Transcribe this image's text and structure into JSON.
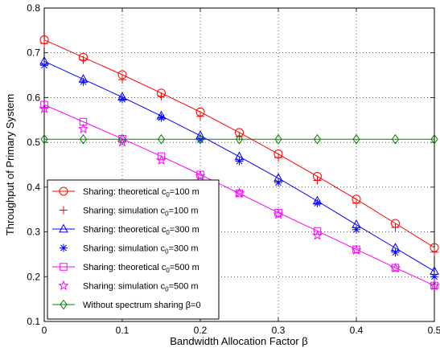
{
  "chart_data": {
    "type": "line",
    "xlabel": "Bandwidth Allocation Factor β",
    "ylabel": "Throughput of Primary System",
    "xlim": [
      0,
      0.5
    ],
    "ylim": [
      0.1,
      0.8
    ],
    "grid": true,
    "legend_position": "bottom-left",
    "x_ticks": [
      "0",
      "0.1",
      "0.2",
      "0.3",
      "0.4",
      "0.5"
    ],
    "y_ticks": [
      "0.1",
      "0.2",
      "0.3",
      "0.4",
      "0.5",
      "0.6",
      "0.7",
      "0.8"
    ],
    "series": [
      {
        "label_main": "Sharing: theoretical c",
        "label_sub": "0",
        "label_tail": "=100 m",
        "color": "#ff0000",
        "marker": "circle",
        "line": true,
        "x": [
          0,
          0.05,
          0.1,
          0.15,
          0.2,
          0.25,
          0.3,
          0.35,
          0.4,
          0.45,
          0.5
        ],
        "values": [
          0.729,
          0.69,
          0.651,
          0.61,
          0.568,
          0.522,
          0.474,
          0.424,
          0.373,
          0.319,
          0.265
        ]
      },
      {
        "label_main": "Sharing: simulation  c",
        "label_sub": "0",
        "label_tail": "=100 m",
        "color": "#ff0000",
        "marker": "plus",
        "line": false,
        "x": [
          0,
          0.05,
          0.1,
          0.15,
          0.2,
          0.25,
          0.3,
          0.35,
          0.4,
          0.45,
          0.5
        ],
        "values": [
          0.721,
          0.684,
          0.64,
          0.603,
          0.558,
          0.513,
          0.466,
          0.415,
          0.364,
          0.31,
          0.255
        ]
      },
      {
        "label_main": "Sharing: theoretical c",
        "label_sub": "0",
        "label_tail": "=300 m",
        "color": "#0000ff",
        "marker": "triangle",
        "line": true,
        "x": [
          0,
          0.05,
          0.1,
          0.15,
          0.2,
          0.25,
          0.3,
          0.35,
          0.4,
          0.45,
          0.5
        ],
        "values": [
          0.681,
          0.641,
          0.601,
          0.559,
          0.515,
          0.468,
          0.42,
          0.369,
          0.316,
          0.264,
          0.212
        ]
      },
      {
        "label_main": "Sharing: simulation  c",
        "label_sub": "0",
        "label_tail": "=300 m",
        "color": "#0000ff",
        "marker": "asterisk",
        "line": false,
        "x": [
          0,
          0.05,
          0.1,
          0.15,
          0.2,
          0.25,
          0.3,
          0.35,
          0.4,
          0.45,
          0.5
        ],
        "values": [
          0.672,
          0.635,
          0.596,
          0.555,
          0.506,
          0.458,
          0.41,
          0.364,
          0.305,
          0.254,
          0.2
        ]
      },
      {
        "label_main": "Sharing: theoretical c",
        "label_sub": "0",
        "label_tail": "=500 m",
        "color": "#ff00ff",
        "marker": "square",
        "line": true,
        "x": [
          0,
          0.05,
          0.1,
          0.15,
          0.2,
          0.25,
          0.3,
          0.35,
          0.4,
          0.45,
          0.5
        ],
        "values": [
          0.584,
          0.546,
          0.508,
          0.469,
          0.428,
          0.386,
          0.343,
          0.302,
          0.261,
          0.22,
          0.18
        ]
      },
      {
        "label_main": "Sharing: simulation  c",
        "label_sub": "0",
        "label_tail": "=500 m",
        "color": "#ff00ff",
        "marker": "star",
        "line": false,
        "x": [
          0,
          0.05,
          0.1,
          0.15,
          0.2,
          0.25,
          0.3,
          0.35,
          0.4,
          0.45,
          0.5
        ],
        "values": [
          0.575,
          0.53,
          0.5,
          0.46,
          0.425,
          0.387,
          0.339,
          0.292,
          0.259,
          0.219,
          0.18
        ]
      },
      {
        "label_main": "Without spectrum sharing β=0",
        "label_sub": "",
        "label_tail": "",
        "color": "#008000",
        "marker": "diamond",
        "line": true,
        "x": [
          0,
          0.05,
          0.1,
          0.15,
          0.2,
          0.25,
          0.3,
          0.35,
          0.4,
          0.45,
          0.5
        ],
        "values": [
          0.507,
          0.507,
          0.507,
          0.507,
          0.507,
          0.507,
          0.507,
          0.507,
          0.507,
          0.507,
          0.507
        ]
      }
    ]
  }
}
